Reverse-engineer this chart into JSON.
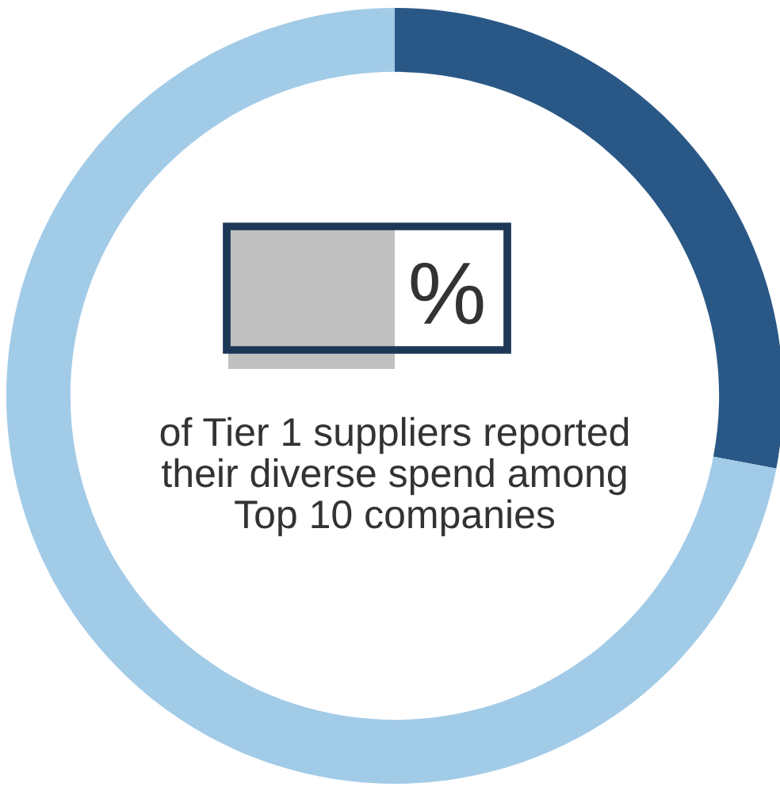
{
  "chart_data": {
    "type": "donut",
    "categories": [
      null,
      null
    ],
    "values": [
      28,
      72
    ],
    "colors": [
      "#2a5886",
      "#a2cbe8"
    ],
    "annotations": [
      "%",
      "of Tier 1 suppliers reported\ntheir diverse spend among\nTop 10 companies"
    ]
  }
}
